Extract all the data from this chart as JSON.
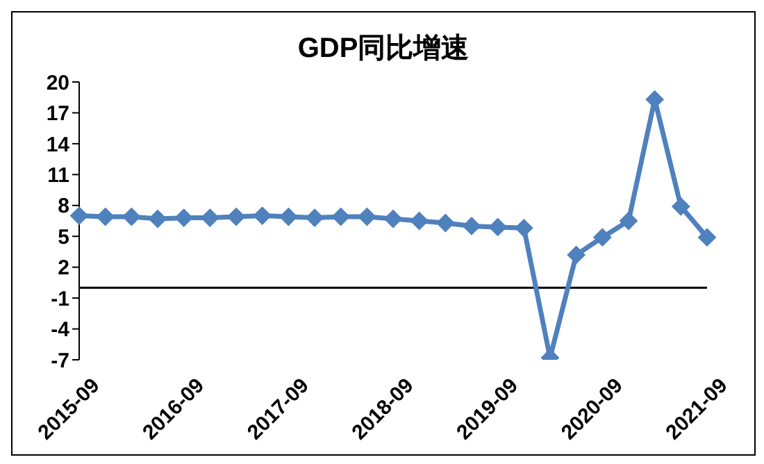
{
  "chart_data": {
    "type": "line",
    "title": "GDP同比增速",
    "categories": [
      "2015-09",
      null,
      null,
      null,
      "2016-09",
      null,
      null,
      null,
      "2017-09",
      null,
      null,
      null,
      "2018-09",
      null,
      null,
      null,
      "2019-09",
      null,
      null,
      null,
      "2020-09",
      null,
      null,
      null,
      "2021-09"
    ],
    "series": [
      {
        "color": "#4f81bd",
        "values": [
          7.0,
          6.9,
          6.9,
          6.7,
          6.8,
          6.8,
          6.9,
          7.0,
          6.9,
          6.8,
          6.9,
          6.9,
          6.7,
          6.5,
          6.3,
          6.0,
          5.9,
          5.8,
          -6.8,
          3.2,
          4.9,
          6.5,
          18.3,
          7.9,
          4.9
        ]
      }
    ],
    "ylim": [
      -7,
      20
    ],
    "yticks": [
      -7,
      -4,
      -1,
      2,
      5,
      8,
      11,
      14,
      17,
      20
    ],
    "ref_lines": [
      {
        "axis": "y",
        "value": 0,
        "color": "#000000"
      }
    ],
    "grid": false,
    "legend": false,
    "marker": "diamond",
    "line_style": "solid"
  }
}
